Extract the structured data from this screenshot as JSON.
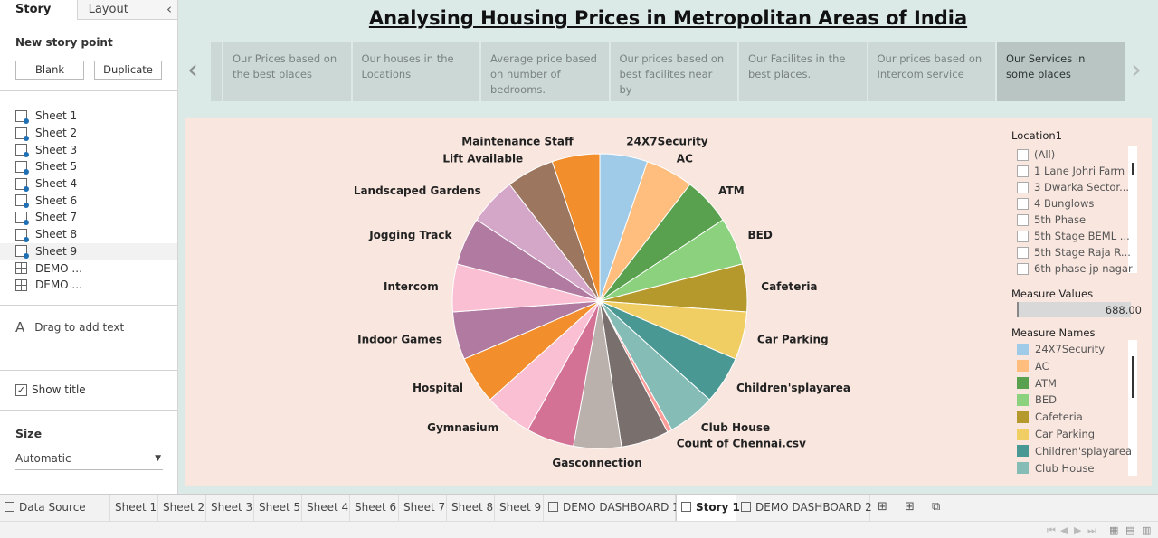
{
  "story_panel": {
    "tab_story": "Story",
    "tab_layout": "Layout",
    "new_story_point": "New story point",
    "blank_button": "Blank",
    "duplicate_button": "Duplicate",
    "sheets": [
      {
        "label": "Sheet 1",
        "kind": "sheet"
      },
      {
        "label": "Sheet 2",
        "kind": "sheet"
      },
      {
        "label": "Sheet 3",
        "kind": "sheet"
      },
      {
        "label": "Sheet 5",
        "kind": "sheet"
      },
      {
        "label": "Sheet 4",
        "kind": "sheet"
      },
      {
        "label": "Sheet 6",
        "kind": "sheet"
      },
      {
        "label": "Sheet 7",
        "kind": "sheet"
      },
      {
        "label": "Sheet 8",
        "kind": "sheet"
      },
      {
        "label": "Sheet 9",
        "kind": "sheet",
        "selected": true
      },
      {
        "label": "DEMO ...",
        "kind": "dashboard"
      },
      {
        "label": "DEMO ...",
        "kind": "dashboard"
      }
    ],
    "drag_text": "Drag to add text",
    "show_title": "Show title",
    "size_title": "Size",
    "size_value": "Automatic"
  },
  "story": {
    "title": "Analysing Housing Prices in Metropolitan Areas of India",
    "points": [
      "Our Prices based on the best places",
      "Our houses in the Locations",
      "Average price based on number of bedrooms.",
      "Our prices based on best facilites near by",
      "Our Facilites in the best places.",
      "Our prices based on Intercom service",
      "Our Services in some places"
    ],
    "active_point": 6
  },
  "chart_data": {
    "type": "pie",
    "slices": [
      {
        "label": "24X7Security",
        "value": 1,
        "color": "#a0cbe8"
      },
      {
        "label": "AC",
        "value": 1,
        "color": "#ffbe7d"
      },
      {
        "label": "ATM",
        "value": 1,
        "color": "#59a14f"
      },
      {
        "label": "BED",
        "value": 1,
        "color": "#8cd17d"
      },
      {
        "label": "Cafeteria",
        "value": 1,
        "color": "#b6992d"
      },
      {
        "label": "Car Parking",
        "value": 1,
        "color": "#f1ce63"
      },
      {
        "label": "Children'splayarea",
        "value": 1,
        "color": "#499894"
      },
      {
        "label": "Club House",
        "value": 1,
        "color": "#86bcb6"
      },
      {
        "label": "Count of Chennai.csv",
        "value": 0.1,
        "color": "#ff9d9a"
      },
      {
        "label": "",
        "value": 1,
        "color": "#79706e"
      },
      {
        "label": "Gasconnection",
        "value": 1,
        "color": "#bab0ac"
      },
      {
        "label": "",
        "value": 1,
        "color": "#d37295"
      },
      {
        "label": "Gymnasium",
        "value": 1,
        "color": "#fabfd2"
      },
      {
        "label": "Hospital",
        "value": 1,
        "color": "#f28e2b"
      },
      {
        "label": "Indoor Games",
        "value": 1,
        "color": "#b07aa1"
      },
      {
        "label": "Intercom",
        "value": 1,
        "color": "#fabfd2"
      },
      {
        "label": "Jogging Track",
        "value": 1,
        "color": "#b07aa1"
      },
      {
        "label": "Landscaped Gardens",
        "value": 1,
        "color": "#d4a6c8"
      },
      {
        "label": "Lift Available",
        "value": 1,
        "color": "#9d7660"
      },
      {
        "label": "Maintenance Staff",
        "value": 1,
        "color": "#f28e2b"
      }
    ]
  },
  "filters": {
    "location_title": "Location1",
    "locations": [
      "(All)",
      "1 Lane Johri Farm",
      "3 Dwarka Sector...",
      "4 Bunglows",
      "5th Phase",
      "5th Stage BEML ...",
      "5th Stage Raja R...",
      "6th phase jp nagar"
    ],
    "measure_values_title": "Measure Values",
    "measure_values_value": "688.00",
    "measure_names_title": "Measure Names",
    "measure_names": [
      {
        "label": "24X7Security",
        "color": "#a0cbe8"
      },
      {
        "label": "AC",
        "color": "#ffbe7d"
      },
      {
        "label": "ATM",
        "color": "#59a14f"
      },
      {
        "label": "BED",
        "color": "#8cd17d"
      },
      {
        "label": "Cafeteria",
        "color": "#b6992d"
      },
      {
        "label": "Car Parking",
        "color": "#f1ce63"
      },
      {
        "label": "Children'splayarea",
        "color": "#499894"
      },
      {
        "label": "Club House",
        "color": "#86bcb6"
      }
    ]
  },
  "bottom_tabs": [
    {
      "label": "Data Source",
      "icon": "database-icon"
    },
    {
      "label": "Sheet 1"
    },
    {
      "label": "Sheet 2"
    },
    {
      "label": "Sheet 3"
    },
    {
      "label": "Sheet 5"
    },
    {
      "label": "Sheet 4"
    },
    {
      "label": "Sheet 6"
    },
    {
      "label": "Sheet 7"
    },
    {
      "label": "Sheet 8"
    },
    {
      "label": "Sheet 9"
    },
    {
      "label": "DEMO DASHBOARD 1",
      "icon": "dashboard-icon"
    },
    {
      "label": "Story 1",
      "icon": "story-icon",
      "active": true
    },
    {
      "label": "DEMO DASHBOARD 2",
      "icon": "dashboard-icon"
    }
  ]
}
